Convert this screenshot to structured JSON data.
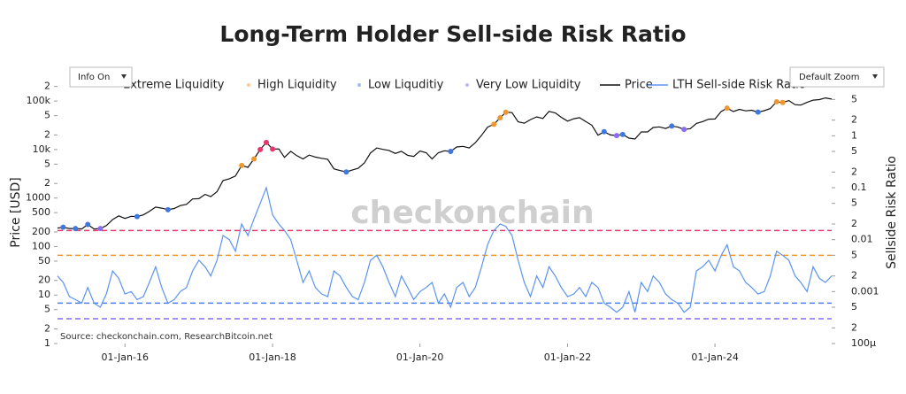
{
  "controls": {
    "info": "Info On",
    "zoom": "Default Zoom"
  },
  "chart_data": {
    "type": "line",
    "title": "Long-Term Holder Sell-side Risk Ratio",
    "ylabel": "Price [USD]",
    "y2label": "Sellside Risk Ratio",
    "source": "Source: checkonchain.com, ResearchBitcoin.net",
    "watermark": "checkonchain",
    "xlim": [
      "2015-02-01",
      "2025-08-01"
    ],
    "xticks": [
      {
        "value": "2016-01-01",
        "label": "01-Jan-16"
      },
      {
        "value": "2018-01-01",
        "label": "01-Jan-18"
      },
      {
        "value": "2020-01-01",
        "label": "01-Jan-20"
      },
      {
        "value": "2022-01-01",
        "label": "01-Jan-22"
      },
      {
        "value": "2024-01-01",
        "label": "01-Jan-24"
      }
    ],
    "ylog": true,
    "ylim": [
      1,
      300000
    ],
    "yticks": [
      1,
      2,
      5,
      10,
      20,
      50,
      100,
      200,
      500,
      1000,
      {
        "value": 2000,
        "label": "2"
      },
      {
        "value": 5000,
        "label": "5"
      },
      {
        "value": 10000,
        "label": "10k"
      },
      {
        "value": 20000,
        "label": "2"
      },
      {
        "value": 50000,
        "label": "5"
      },
      {
        "value": 100000,
        "label": "100k"
      },
      {
        "value": 200000,
        "label": "2"
      }
    ],
    "y2log": true,
    "y2lim": [
      0.0001,
      13
    ],
    "y2ticks": [
      {
        "value": 0.0001,
        "label": "100μ"
      },
      {
        "value": 0.0002,
        "label": "2"
      },
      {
        "value": 0.0005,
        "label": "5"
      },
      0.001,
      {
        "value": 0.002,
        "label": "2"
      },
      {
        "value": 0.005,
        "label": "5"
      },
      0.01,
      {
        "value": 0.02,
        "label": "2"
      },
      {
        "value": 0.05,
        "label": "5"
      },
      0.1,
      {
        "value": 0.2,
        "label": "2"
      },
      {
        "value": 0.5,
        "label": "5"
      },
      1,
      2,
      5
    ],
    "hlines": [
      {
        "value": 0.015,
        "color": "#e8336b",
        "axis": "y2"
      },
      {
        "value": 0.005,
        "color": "#f0962e",
        "axis": "y2"
      },
      {
        "value": 0.0006,
        "color": "#4f7ff0",
        "axis": "y2"
      },
      {
        "value": 0.0003,
        "color": "#8a6cf5",
        "axis": "y2"
      }
    ],
    "x": [
      "2015-02-01",
      "2015-03-01",
      "2015-04-01",
      "2015-05-01",
      "2015-06-01",
      "2015-07-01",
      "2015-08-01",
      "2015-09-01",
      "2015-10-01",
      "2015-11-01",
      "2015-12-01",
      "2016-01-01",
      "2016-02-01",
      "2016-03-01",
      "2016-04-01",
      "2016-05-01",
      "2016-06-01",
      "2016-07-01",
      "2016-08-01",
      "2016-09-01",
      "2016-10-01",
      "2016-11-01",
      "2016-12-01",
      "2017-01-01",
      "2017-02-01",
      "2017-03-01",
      "2017-04-01",
      "2017-05-01",
      "2017-06-01",
      "2017-07-01",
      "2017-08-01",
      "2017-09-01",
      "2017-10-01",
      "2017-11-01",
      "2017-12-01",
      "2018-01-01",
      "2018-02-01",
      "2018-03-01",
      "2018-04-01",
      "2018-05-01",
      "2018-06-01",
      "2018-07-01",
      "2018-08-01",
      "2018-09-01",
      "2018-10-01",
      "2018-11-01",
      "2018-12-01",
      "2019-01-01",
      "2019-02-01",
      "2019-03-01",
      "2019-04-01",
      "2019-05-01",
      "2019-06-01",
      "2019-07-01",
      "2019-08-01",
      "2019-09-01",
      "2019-10-01",
      "2019-11-01",
      "2019-12-01",
      "2020-01-01",
      "2020-02-01",
      "2020-03-01",
      "2020-04-01",
      "2020-05-01",
      "2020-06-01",
      "2020-07-01",
      "2020-08-01",
      "2020-09-01",
      "2020-10-01",
      "2020-11-01",
      "2020-12-01",
      "2021-01-01",
      "2021-02-01",
      "2021-03-01",
      "2021-04-01",
      "2021-05-01",
      "2021-06-01",
      "2021-07-01",
      "2021-08-01",
      "2021-09-01",
      "2021-10-01",
      "2021-11-01",
      "2021-12-01",
      "2022-01-01",
      "2022-02-01",
      "2022-03-01",
      "2022-04-01",
      "2022-05-01",
      "2022-06-01",
      "2022-07-01",
      "2022-08-01",
      "2022-09-01",
      "2022-10-01",
      "2022-11-01",
      "2022-12-01",
      "2023-01-01",
      "2023-02-01",
      "2023-03-01",
      "2023-04-01",
      "2023-05-01",
      "2023-06-01",
      "2023-07-01",
      "2023-08-01",
      "2023-09-01",
      "2023-10-01",
      "2023-11-01",
      "2023-12-01",
      "2024-01-01",
      "2024-02-01",
      "2024-03-01",
      "2024-04-01",
      "2024-05-01",
      "2024-06-01",
      "2024-07-01",
      "2024-08-01",
      "2024-09-01",
      "2024-10-01",
      "2024-11-01",
      "2024-12-01",
      "2025-01-01",
      "2025-02-01",
      "2025-03-01",
      "2025-04-01",
      "2025-05-01",
      "2025-06-01",
      "2025-07-01",
      "2025-08-01"
    ],
    "series": [
      {
        "name": "Extreme Liquidity",
        "type": "scatter",
        "color": "#e8336b",
        "x": [
          "2017-11-01",
          "2017-12-01",
          "2018-01-01"
        ],
        "values": [
          10000,
          14000,
          10200
        ]
      },
      {
        "name": "High Liquidity",
        "type": "scatter",
        "color": "#f0962e",
        "x": [
          "2017-08-01",
          "2017-10-01",
          "2021-01-01",
          "2021-02-01",
          "2021-03-01",
          "2024-03-01",
          "2024-11-01",
          "2024-12-01"
        ],
        "values": [
          4700,
          6400,
          33100,
          45200,
          58800,
          71300,
          96400,
          93400
        ]
      },
      {
        "name": "Low Liquditiy",
        "type": "scatter",
        "color": "#3f78e0",
        "x": [
          "2015-03-01",
          "2015-05-01",
          "2015-07-01",
          "2016-03-01",
          "2016-08-01",
          "2019-01-01",
          "2020-06-01",
          "2022-07-01",
          "2022-10-01",
          "2023-06-01",
          "2024-08-01"
        ],
        "values": [
          250,
          235,
          285,
          415,
          575,
          3450,
          9150,
          23300,
          20500,
          30500,
          59000
        ]
      },
      {
        "name": "Very Low Liquidity",
        "type": "scatter",
        "color": "#8a6cf5",
        "x": [
          "2015-09-01",
          "2022-09-01",
          "2023-08-01"
        ],
        "values": [
          235,
          19400,
          26000
        ]
      },
      {
        "name": "Price",
        "type": "line",
        "color": "#111111",
        "values": [
          240,
          250,
          235,
          235,
          230,
          285,
          230,
          235,
          270,
          360,
          430,
          380,
          420,
          415,
          450,
          530,
          650,
          620,
          575,
          608,
          700,
          740,
          960,
          970,
          1190,
          1070,
          1350,
          2300,
          2500,
          2850,
          4700,
          4300,
          6400,
          10000,
          14000,
          10200,
          10300,
          6900,
          9200,
          7500,
          6400,
          7700,
          7000,
          6600,
          6300,
          4000,
          3700,
          3450,
          3800,
          4100,
          5300,
          8500,
          10800,
          10100,
          9600,
          8300,
          9200,
          7600,
          7200,
          9350,
          8600,
          6400,
          8600,
          9450,
          9150,
          11300,
          11650,
          10800,
          13800,
          19700,
          29000,
          33100,
          45200,
          58800,
          57700,
          37300,
          35000,
          41500,
          47100,
          43800,
          61300,
          57000,
          46300,
          38500,
          43200,
          45500,
          37700,
          31800,
          19800,
          23300,
          20000,
          19400,
          20500,
          17200,
          16500,
          23100,
          23100,
          28500,
          29300,
          27200,
          30500,
          29200,
          26000,
          27000,
          34500,
          37700,
          42300,
          42600,
          61200,
          71300,
          60600,
          67500,
          62700,
          64600,
          59000,
          63300,
          70200,
          96400,
          93400,
          102400,
          84400,
          82500,
          94200,
          104600,
          107100,
          115800,
          110000
        ]
      },
      {
        "name": "LTH Sell-side Risk Ratio",
        "type": "line",
        "axis": "y2",
        "color": "#5b93f2",
        "values": [
          0.002,
          0.0015,
          0.0008,
          0.0007,
          0.0006,
          0.0012,
          0.0006,
          0.0005,
          0.0009,
          0.0025,
          0.0018,
          0.0009,
          0.001,
          0.0007,
          0.0008,
          0.0015,
          0.003,
          0.0012,
          0.0006,
          0.0007,
          0.001,
          0.0012,
          0.0025,
          0.004,
          0.003,
          0.002,
          0.004,
          0.012,
          0.01,
          0.006,
          0.02,
          0.012,
          0.025,
          0.05,
          0.1,
          0.03,
          0.02,
          0.015,
          0.01,
          0.004,
          0.0015,
          0.0025,
          0.0012,
          0.0009,
          0.0008,
          0.0025,
          0.002,
          0.0012,
          0.0008,
          0.0007,
          0.0015,
          0.004,
          0.005,
          0.003,
          0.0015,
          0.0008,
          0.002,
          0.0012,
          0.0007,
          0.001,
          0.0012,
          0.0015,
          0.0006,
          0.0009,
          0.0005,
          0.0012,
          0.0015,
          0.0008,
          0.0012,
          0.003,
          0.008,
          0.015,
          0.02,
          0.018,
          0.012,
          0.004,
          0.0015,
          0.0008,
          0.002,
          0.0012,
          0.003,
          0.002,
          0.0012,
          0.0008,
          0.0009,
          0.0012,
          0.0008,
          0.0015,
          0.0012,
          0.0006,
          0.0005,
          0.0004,
          0.0005,
          0.001,
          0.0004,
          0.0015,
          0.001,
          0.002,
          0.0015,
          0.0009,
          0.0007,
          0.0006,
          0.0004,
          0.0005,
          0.0025,
          0.003,
          0.004,
          0.0025,
          0.005,
          0.008,
          0.003,
          0.0025,
          0.0015,
          0.0012,
          0.0009,
          0.001,
          0.002,
          0.006,
          0.005,
          0.004,
          0.002,
          0.0015,
          0.001,
          0.003,
          0.0018,
          0.0015,
          0.002
        ]
      }
    ]
  }
}
